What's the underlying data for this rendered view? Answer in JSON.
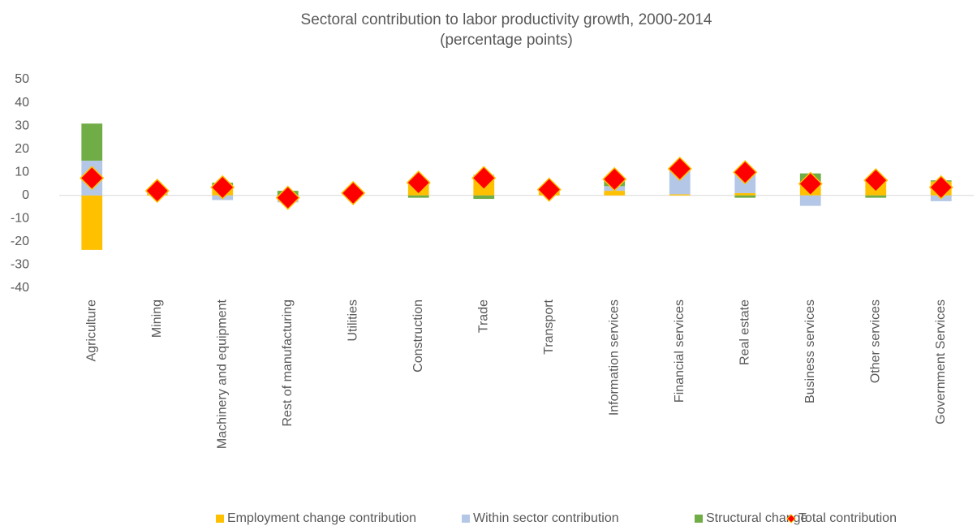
{
  "chart_data": {
    "type": "bar",
    "stacked": true,
    "title": "Sectoral contribution to labor productivity growth, 2000-2014",
    "subtitle": "(percentage points)",
    "categories": [
      "Agriculture",
      "Mining",
      "Machinery and equipment",
      "Rest of manufacturing",
      "Utilities",
      "Construction",
      "Trade",
      "Transport",
      "Information services",
      "Financial services",
      "Real estate",
      "Business services",
      "Other services",
      "Government Services"
    ],
    "series": [
      {
        "name": "Employment change contribution",
        "color": "#FFC000",
        "values": [
          -23.5,
          0.5,
          3,
          -1,
          0.5,
          5,
          8,
          1.5,
          2,
          0.5,
          1,
          5,
          7,
          6
        ]
      },
      {
        "name": "Within sector contribution",
        "color": "#B4C7E7",
        "values": [
          15,
          1.5,
          -2,
          -2,
          0.5,
          1.5,
          1,
          1,
          2,
          11,
          10,
          -4.5,
          0.5,
          -2.5
        ]
      },
      {
        "name": "Structural change",
        "color": "#70AD47",
        "values": [
          16,
          0,
          2.5,
          2,
          0,
          -1,
          -1.5,
          0,
          3,
          0,
          -1,
          4.5,
          -1,
          0.5
        ]
      },
      {
        "name": "Total contribution",
        "color": "#FF0000",
        "marker": "diamond",
        "edge_color": "#FFC000",
        "values": [
          7.5,
          2,
          3.5,
          -1,
          1,
          5.5,
          7.5,
          2.5,
          7,
          11.5,
          10,
          5,
          6.5,
          3.5
        ]
      }
    ],
    "ylim": [
      -40,
      50
    ],
    "yticks": [
      -40,
      -30,
      -20,
      -10,
      0,
      10,
      20,
      30,
      40,
      50
    ],
    "grid": false,
    "legend": "bottom"
  }
}
